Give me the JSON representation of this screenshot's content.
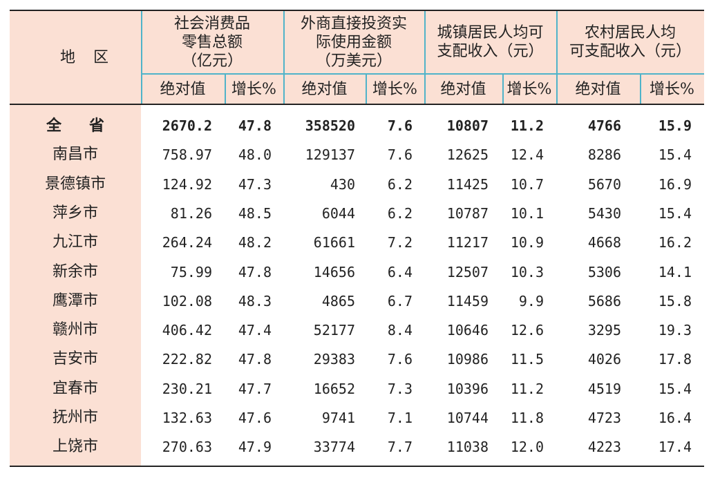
{
  "header": {
    "region": "地区",
    "groups": [
      {
        "title_lines": [
          "社会消费品",
          "零售总额",
          "（亿元）"
        ]
      },
      {
        "title_lines": [
          "外商直接投资实",
          "际使用金额",
          "（万美元）"
        ]
      },
      {
        "title_lines": [
          "城镇居民人均可",
          "支配收入（元）"
        ]
      },
      {
        "title_lines": [
          "农村居民人均",
          "可支配收入（元）"
        ]
      }
    ],
    "sub": [
      "绝对值",
      "增长%",
      "绝对值",
      "增长%",
      "绝对值",
      "增长%",
      "绝对值",
      "增长%"
    ]
  },
  "rows": [
    {
      "region": "全省",
      "cells": [
        "2670.2",
        "47.8",
        "358520",
        "7.6",
        "10807",
        "11.2",
        "4766",
        "15.9"
      ]
    },
    {
      "region": "南昌市",
      "cells": [
        "758.97",
        "48.0",
        "129137",
        "7.6",
        "12625",
        "12.4",
        "8286",
        "15.4"
      ]
    },
    {
      "region": "景德镇市",
      "cells": [
        "124.92",
        "47.3",
        "430",
        "6.2",
        "11425",
        "10.7",
        "5670",
        "16.9"
      ]
    },
    {
      "region": "萍乡市",
      "cells": [
        "81.26",
        "48.5",
        "6044",
        "6.2",
        "10787",
        "10.1",
        "5430",
        "15.4"
      ]
    },
    {
      "region": "九江市",
      "cells": [
        "264.24",
        "48.2",
        "61661",
        "7.2",
        "11217",
        "10.9",
        "4668",
        "16.2"
      ]
    },
    {
      "region": "新余市",
      "cells": [
        "75.99",
        "47.8",
        "14656",
        "6.4",
        "12507",
        "10.3",
        "5306",
        "14.1"
      ]
    },
    {
      "region": "鹰潭市",
      "cells": [
        "102.08",
        "48.3",
        "4865",
        "6.7",
        "11459",
        "9.9",
        "5686",
        "15.8"
      ]
    },
    {
      "region": "赣州市",
      "cells": [
        "406.42",
        "47.4",
        "52177",
        "8.4",
        "10646",
        "12.6",
        "3295",
        "19.3"
      ]
    },
    {
      "region": "吉安市",
      "cells": [
        "222.82",
        "47.8",
        "29383",
        "7.6",
        "10986",
        "11.5",
        "4026",
        "17.8"
      ]
    },
    {
      "region": "宜春市",
      "cells": [
        "230.21",
        "47.7",
        "16652",
        "7.3",
        "10396",
        "11.2",
        "4519",
        "15.4"
      ]
    },
    {
      "region": "抚州市",
      "cells": [
        "132.63",
        "47.6",
        "9741",
        "7.1",
        "10744",
        "11.8",
        "4723",
        "16.4"
      ]
    },
    {
      "region": "上饶市",
      "cells": [
        "270.63",
        "47.9",
        "33774",
        "7.7",
        "11038",
        "12.0",
        "4223",
        "17.4"
      ]
    }
  ]
}
